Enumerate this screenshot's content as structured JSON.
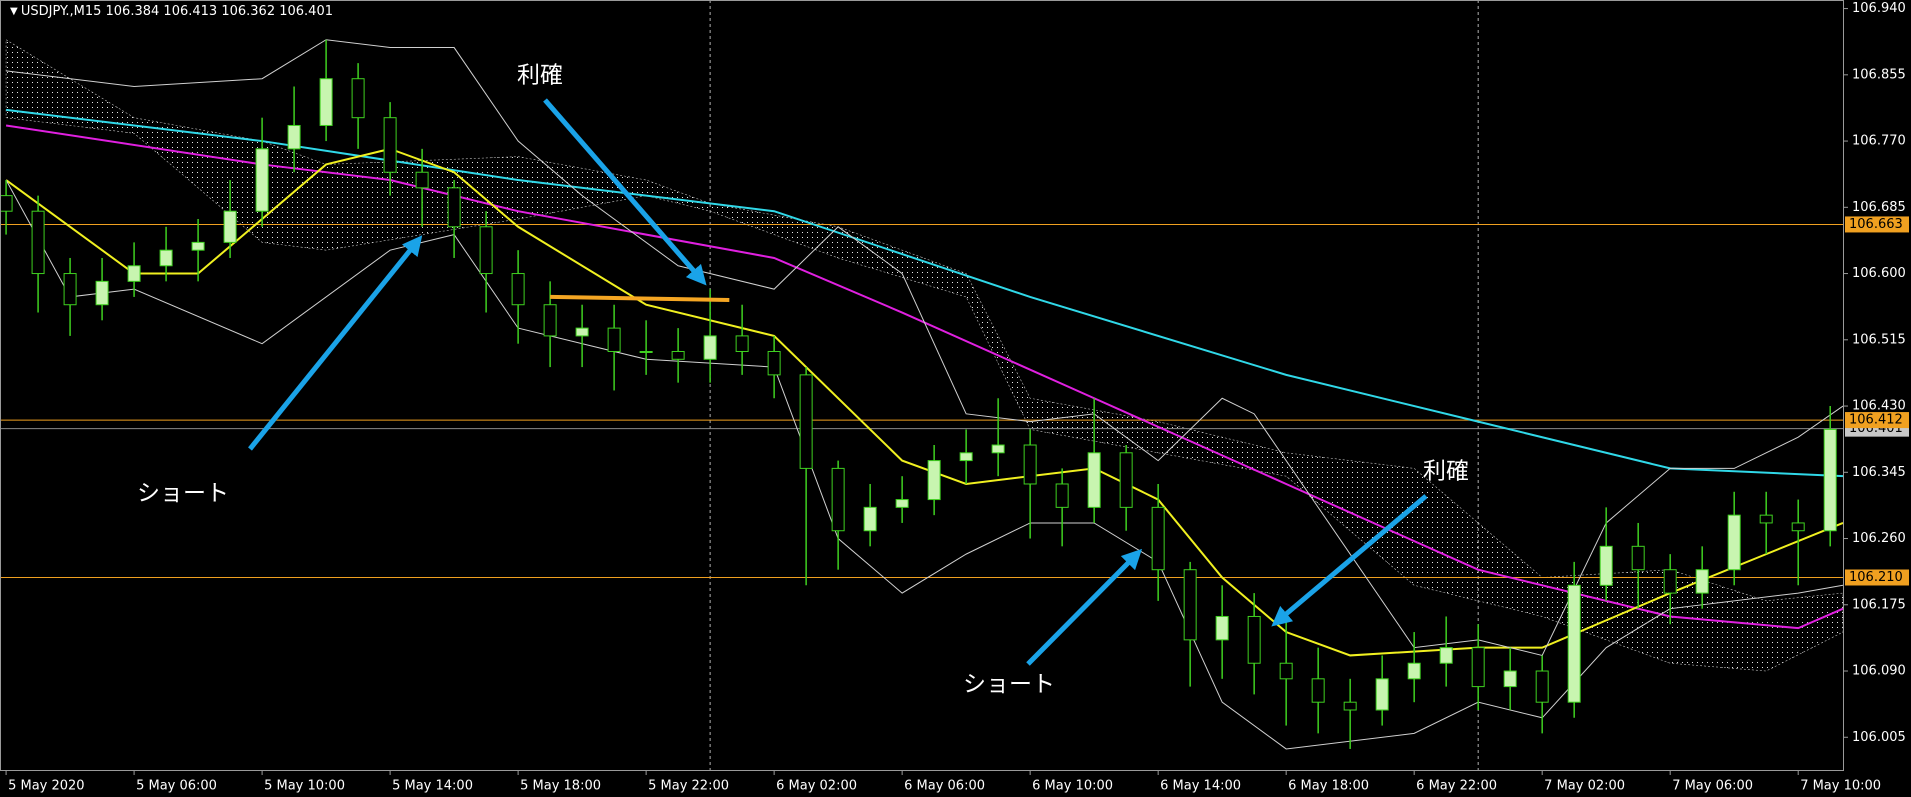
{
  "chart_data": {
    "type": "candlestick",
    "symbol": "USDJPY.,M15",
    "ohlc": [
      106.384,
      106.413,
      106.362,
      106.401
    ],
    "open": [
      106.7,
      106.68,
      106.6,
      106.56,
      106.59,
      106.61,
      106.63,
      106.64,
      106.68,
      106.76,
      106.79,
      106.85,
      106.8,
      106.73,
      106.71,
      106.66,
      106.6,
      106.56,
      106.52,
      106.53,
      106.5,
      106.5,
      106.49,
      106.52,
      106.5,
      106.47,
      106.35,
      106.27,
      106.3,
      106.31,
      106.36,
      106.37,
      106.38,
      106.33,
      106.3,
      106.37,
      106.3,
      106.22,
      106.13,
      106.16,
      106.1,
      106.08,
      106.05,
      106.04,
      106.08,
      106.1,
      106.12,
      106.07,
      106.09,
      106.05,
      106.2,
      106.25,
      106.22,
      106.19,
      106.22,
      106.29,
      106.28,
      106.27
    ],
    "high": [
      106.72,
      106.7,
      106.62,
      106.62,
      106.64,
      106.66,
      106.67,
      106.72,
      106.8,
      106.84,
      106.9,
      106.87,
      106.82,
      106.76,
      106.72,
      106.68,
      106.63,
      106.59,
      106.56,
      106.56,
      106.54,
      106.53,
      106.58,
      106.56,
      106.52,
      106.48,
      106.36,
      106.33,
      106.34,
      106.38,
      106.4,
      106.44,
      106.4,
      106.35,
      106.44,
      106.38,
      106.33,
      106.23,
      106.2,
      106.19,
      106.16,
      106.12,
      106.08,
      106.11,
      106.14,
      106.16,
      106.15,
      106.12,
      106.11,
      106.23,
      106.3,
      106.28,
      106.24,
      106.25,
      106.32,
      106.32,
      106.31,
      106.43
    ],
    "low": [
      106.65,
      106.55,
      106.52,
      106.54,
      106.57,
      106.59,
      106.59,
      106.62,
      106.66,
      106.73,
      106.77,
      106.76,
      106.7,
      106.66,
      106.62,
      106.55,
      106.51,
      106.48,
      106.48,
      106.45,
      106.47,
      106.46,
      106.46,
      106.47,
      106.44,
      106.2,
      106.22,
      106.25,
      106.28,
      106.29,
      106.33,
      106.34,
      106.26,
      106.25,
      106.28,
      106.27,
      106.18,
      106.07,
      106.08,
      106.06,
      106.02,
      106.01,
      105.99,
      106.02,
      106.05,
      106.07,
      106.04,
      106.04,
      106.01,
      106.03,
      106.18,
      106.17,
      106.15,
      106.17,
      106.2,
      106.24,
      106.2,
      106.25
    ],
    "close": [
      106.68,
      106.6,
      106.56,
      106.59,
      106.61,
      106.63,
      106.64,
      106.68,
      106.76,
      106.79,
      106.85,
      106.8,
      106.73,
      106.71,
      106.66,
      106.6,
      106.56,
      106.52,
      106.53,
      106.5,
      106.5,
      106.49,
      106.52,
      106.5,
      106.47,
      106.35,
      106.27,
      106.3,
      106.31,
      106.36,
      106.37,
      106.38,
      106.33,
      106.3,
      106.37,
      106.3,
      106.22,
      106.13,
      106.16,
      106.1,
      106.08,
      106.05,
      106.04,
      106.08,
      106.1,
      106.12,
      106.07,
      106.09,
      106.05,
      106.2,
      106.25,
      106.22,
      106.19,
      106.22,
      106.29,
      106.28,
      106.27,
      106.4
    ],
    "up_color": "#c8f5b0",
    "down_color": "#000000",
    "wick_color": "#3fd020",
    "cloud": {
      "x": [
        0,
        4,
        8,
        10,
        16,
        20,
        22,
        26,
        30,
        32,
        36,
        40,
        44,
        48,
        52,
        55,
        57.4
      ],
      "upper": [
        106.9,
        106.8,
        106.77,
        106.74,
        106.75,
        106.72,
        106.69,
        106.66,
        106.6,
        106.44,
        106.41,
        106.37,
        106.35,
        106.21,
        106.22,
        106.18,
        106.19
      ],
      "lower": [
        106.8,
        106.78,
        106.64,
        106.63,
        106.67,
        106.7,
        106.68,
        106.62,
        106.57,
        106.4,
        106.37,
        106.34,
        106.2,
        106.16,
        106.1,
        106.09,
        106.14
      ]
    },
    "series": [
      {
        "color": "#30d8e8",
        "x": [
          0,
          8,
          16,
          24,
          32,
          40,
          46,
          52,
          57.4
        ],
        "values": [
          106.81,
          106.77,
          106.72,
          106.68,
          106.57,
          106.47,
          106.41,
          106.35,
          106.34
        ]
      },
      {
        "color": "#e020e0",
        "x": [
          0,
          8,
          12,
          16,
          24,
          28,
          34,
          40,
          46,
          52,
          56,
          57.4
        ],
        "values": [
          106.79,
          106.74,
          106.72,
          106.68,
          106.62,
          106.55,
          106.44,
          106.33,
          106.22,
          106.16,
          106.145,
          106.17
        ]
      },
      {
        "color": "#f0f020",
        "x": [
          0,
          4,
          6,
          10,
          12,
          14,
          16,
          20,
          24,
          28,
          30,
          34,
          36,
          38,
          40,
          42,
          46,
          48,
          52,
          55,
          57.4
        ],
        "values": [
          106.72,
          106.6,
          106.6,
          106.74,
          106.76,
          106.73,
          106.66,
          106.56,
          106.52,
          106.36,
          106.33,
          106.35,
          106.31,
          106.21,
          106.14,
          106.11,
          106.12,
          106.12,
          106.19,
          106.24,
          106.28
        ]
      },
      {
        "color": "#d0d0d0",
        "x": [
          0,
          4,
          8,
          10,
          12,
          14,
          16,
          18,
          21,
          24,
          26,
          28,
          30,
          32,
          34,
          36,
          38,
          39,
          41,
          44,
          46,
          48,
          50,
          52,
          54,
          56,
          57.4
        ],
        "values": [
          106.86,
          106.84,
          106.85,
          106.9,
          106.89,
          106.89,
          106.77,
          106.7,
          106.61,
          106.58,
          106.66,
          106.6,
          106.42,
          106.41,
          106.42,
          106.36,
          106.44,
          106.42,
          106.3,
          106.12,
          106.13,
          106.11,
          106.28,
          106.35,
          106.35,
          106.39,
          106.43
        ]
      },
      {
        "color": "#d0d0d0",
        "x": [
          0,
          2,
          4,
          8,
          12,
          14,
          16,
          20,
          24,
          26,
          28,
          30,
          32,
          34,
          36,
          38,
          40,
          44,
          46,
          48,
          50,
          52,
          56,
          57.4
        ],
        "values": [
          106.72,
          106.57,
          106.58,
          106.51,
          106.63,
          106.65,
          106.53,
          106.49,
          106.48,
          106.26,
          106.19,
          106.24,
          106.28,
          106.28,
          106.23,
          106.05,
          105.99,
          106.01,
          106.05,
          106.03,
          106.12,
          106.17,
          106.19,
          106.2
        ]
      }
    ],
    "trendline": {
      "color": "#f5a623",
      "x": [
        17,
        22.6
      ],
      "values": [
        106.57,
        106.566
      ]
    },
    "levels": [
      106.663,
      106.412,
      {
        "value": 106.21,
        "label": "106.210"
      }
    ],
    "level_color": "#f0a020",
    "bid": 106.401,
    "separators": [
      22,
      46
    ],
    "xlim": [
      -0.19,
      57.4
    ],
    "ylim": [
      105.963,
      106.951
    ],
    "xticks": [
      {
        "value": 0,
        "label": "5 May 2020"
      },
      {
        "value": 4,
        "label": "5 May 06:00"
      },
      {
        "value": 8,
        "label": "5 May 10:00"
      },
      {
        "value": 12,
        "label": "5 May 14:00"
      },
      {
        "value": 16,
        "label": "5 May 18:00"
      },
      {
        "value": 20,
        "label": "5 May 22:00"
      },
      {
        "value": 24,
        "label": "6 May 02:00"
      },
      {
        "value": 28,
        "label": "6 May 06:00"
      },
      {
        "value": 32,
        "label": "6 May 10:00"
      },
      {
        "value": 36,
        "label": "6 May 14:00"
      },
      {
        "value": 40,
        "label": "6 May 18:00"
      },
      {
        "value": 44,
        "label": "6 May 22:00"
      },
      {
        "value": 48,
        "label": "7 May 02:00"
      },
      {
        "value": 52,
        "label": "7 May 06:00"
      },
      {
        "value": 56,
        "label": "7 May 10:00"
      }
    ],
    "yticks": [
      {
        "value": 106.94,
        "label": "106.940"
      },
      106.855,
      {
        "value": 106.77,
        "label": "106.770"
      },
      106.685,
      {
        "value": 106.6,
        "label": "106.600"
      },
      106.515,
      {
        "value": 106.43,
        "label": "106.430"
      },
      106.345,
      {
        "value": 106.26,
        "label": "106.260"
      },
      106.175,
      {
        "value": 106.09,
        "label": "106.090"
      },
      106.005
    ],
    "annotations": [
      "利確",
      "ショート",
      "利確",
      "ショート"
    ]
  }
}
